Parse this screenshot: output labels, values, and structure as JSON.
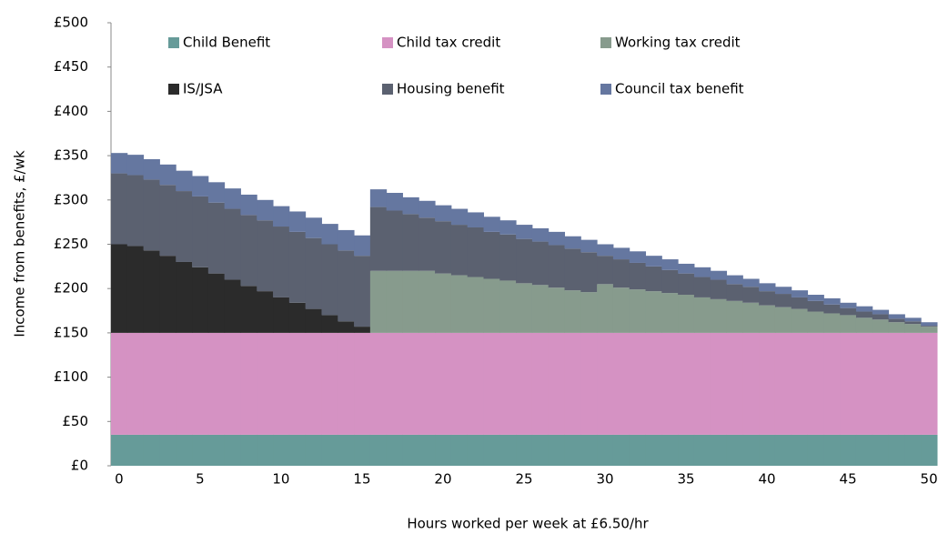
{
  "chart_data": {
    "type": "stacked_step_area",
    "x_label": "Hours worked per week at £6.50/hr",
    "y_label": "Income from benefits, £/wk",
    "categories": [
      0,
      null,
      null,
      null,
      null,
      5,
      null,
      null,
      null,
      null,
      10,
      null,
      null,
      null,
      null,
      15,
      null,
      null,
      null,
      null,
      20,
      null,
      null,
      null,
      null,
      25,
      null,
      null,
      null,
      null,
      30,
      null,
      null,
      null,
      null,
      35,
      null,
      null,
      null,
      null,
      40,
      null,
      null,
      null,
      null,
      45,
      null,
      null,
      null,
      null,
      50
    ],
    "ylim": [
      0,
      500
    ],
    "yticks": [
      {
        "value": 0,
        "label": "£0"
      },
      {
        "value": 50,
        "label": "£50"
      },
      {
        "value": 100,
        "label": "£100"
      },
      {
        "value": 150,
        "label": "£150"
      },
      {
        "value": 200,
        "label": "£200"
      },
      {
        "value": 250,
        "label": "£250"
      },
      {
        "value": 300,
        "label": "£300"
      },
      {
        "value": 350,
        "label": "£350"
      },
      {
        "value": 400,
        "label": "£400"
      },
      {
        "value": 450,
        "label": "£450"
      },
      {
        "value": 500,
        "label": "£500"
      }
    ],
    "series": [
      {
        "name": "Child Benefit",
        "color": "#669b99",
        "values": [
          35,
          35,
          35,
          35,
          35,
          35,
          35,
          35,
          35,
          35,
          35,
          35,
          35,
          35,
          35,
          35,
          35,
          35,
          35,
          35,
          35,
          35,
          35,
          35,
          35,
          35,
          35,
          35,
          35,
          35,
          35,
          35,
          35,
          35,
          35,
          35,
          35,
          35,
          35,
          35,
          35,
          35,
          35,
          35,
          35,
          35,
          35,
          35,
          35,
          35,
          35
        ]
      },
      {
        "name": "Child tax credit",
        "color": "#d592c3",
        "values": [
          115,
          115,
          115,
          115,
          115,
          115,
          115,
          115,
          115,
          115,
          115,
          115,
          115,
          115,
          115,
          115,
          115,
          115,
          115,
          115,
          115,
          115,
          115,
          115,
          115,
          115,
          115,
          115,
          115,
          115,
          115,
          115,
          115,
          115,
          115,
          115,
          115,
          115,
          115,
          115,
          115,
          115,
          115,
          115,
          115,
          115,
          115,
          115,
          115,
          115,
          115
        ]
      },
      {
        "name": "Working tax credit",
        "color": "#879b8d",
        "values": [
          0,
          0,
          0,
          0,
          0,
          0,
          0,
          0,
          0,
          0,
          0,
          0,
          0,
          0,
          0,
          0,
          70,
          70,
          70,
          70,
          67,
          65,
          63,
          61,
          59,
          56,
          54,
          51,
          48,
          46,
          55,
          51,
          49,
          47,
          45,
          43,
          40,
          38,
          36,
          34,
          31,
          29,
          27,
          24,
          22,
          20,
          17,
          15,
          12,
          10,
          7
        ]
      },
      {
        "name": "IS/JSA",
        "color": "#2b2b2b",
        "values": [
          100,
          98,
          93,
          87,
          80,
          74,
          67,
          60,
          53,
          47,
          40,
          34,
          27,
          20,
          13,
          7,
          0,
          0,
          0,
          0,
          0,
          0,
          0,
          0,
          0,
          0,
          0,
          0,
          0,
          0,
          0,
          0,
          0,
          0,
          0,
          0,
          0,
          0,
          0,
          0,
          0,
          0,
          0,
          0,
          0,
          0,
          0,
          0,
          0,
          0,
          0
        ]
      },
      {
        "name": "Housing benefit",
        "color": "#5b6170",
        "values": [
          80,
          80,
          80,
          80,
          80,
          80,
          80,
          80,
          80,
          80,
          80,
          80,
          80,
          80,
          80,
          80,
          72,
          68,
          64,
          60,
          59,
          57,
          56,
          53,
          52,
          50,
          49,
          48,
          47,
          45,
          32,
          32,
          30,
          28,
          26,
          24,
          23,
          22,
          19,
          18,
          16,
          15,
          13,
          12,
          10,
          8,
          7,
          6,
          4,
          3,
          1
        ]
      },
      {
        "name": "Council tax benefit",
        "color": "#6577a0",
        "values": [
          23,
          23,
          23,
          23,
          23,
          23,
          23,
          23,
          23,
          23,
          23,
          23,
          23,
          23,
          23,
          23,
          20,
          20,
          19,
          19,
          18,
          18,
          17,
          17,
          16,
          16,
          15,
          15,
          14,
          14,
          13,
          13,
          13,
          12,
          12,
          11,
          11,
          10,
          10,
          9,
          9,
          8,
          8,
          7,
          7,
          6,
          6,
          5,
          5,
          4,
          4
        ]
      }
    ]
  }
}
